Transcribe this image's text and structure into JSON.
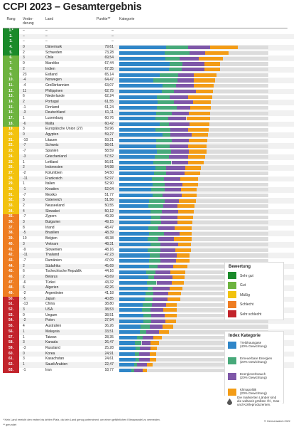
{
  "title": "CCPI 2023 – Gesamtergebnis",
  "header": {
    "rank": "Rang",
    "change": "Verän-\nderung",
    "country": "Land",
    "score": "Punkte**",
    "category": "Kategorie"
  },
  "colors": {
    "rating": {
      "sehr_gut": "#1a8a2a",
      "gut": "#6db33f",
      "maessig": "#f2c20e",
      "schlecht": "#ee7d22",
      "sehr_schlecht": "#c2232b"
    },
    "index": {
      "emissions": "#2f86c8",
      "renewables": "#47a97a",
      "energy": "#7e57a8",
      "policy": "#f39c16"
    }
  },
  "legend_rating": {
    "title": "Bewertung",
    "items": [
      {
        "key": "sehr_gut",
        "label": "Sehr gut"
      },
      {
        "key": "gut",
        "label": "Gut"
      },
      {
        "key": "maessig",
        "label": "Mäßig"
      },
      {
        "key": "schlecht",
        "label": "Schlecht"
      },
      {
        "key": "sehr_schlecht",
        "label": "Sehr schlecht"
      }
    ]
  },
  "legend_index": {
    "title": "Index Kategorie",
    "items": [
      {
        "key": "emissions",
        "label": "Treibhausgase\n(40% Gewichtung)"
      },
      {
        "key": "renewables",
        "label": "Erneuerbare Energien\n(20% Gewichtung)"
      },
      {
        "key": "energy",
        "label": "Energieverbrauch\n(20% Gewichtung)"
      },
      {
        "key": "policy",
        "label": "Klimapolitik\n(20% Gewichtung)"
      }
    ]
  },
  "note": "Die markierten Länder sind die weltweit größten Öl-, Gas- und Kohleproduzenten.",
  "footnote": "* Kein Land erreicht den ersten bis dritten Platz, da kein Land genug unternimmt, um einen gefährlichen Klimawandel zu vermeiden.",
  "footnote2": "** gerundet",
  "credit": "© Germanwatch 2022",
  "chart_data": {
    "type": "bar",
    "stacked": true,
    "title": "CCPI 2023 – Gesamtergebnis",
    "xlim": [
      0,
      100
    ],
    "series_names": [
      "Treibhausgase (40% Gewichtung)",
      "Erneuerbare Energien (20% Gewichtung)",
      "Energieverbrauch (20% Gewichtung)",
      "Klimapolitik (20% Gewichtung)"
    ],
    "rows": [
      {
        "rank": "1.*",
        "change": "",
        "country": "",
        "score": "",
        "rating": "sehr_gut",
        "parts": []
      },
      {
        "rank": "2.",
        "change": "",
        "country": "",
        "score": "",
        "rating": "sehr_gut",
        "parts": []
      },
      {
        "rank": "3.",
        "change": "",
        "country": "",
        "score": "",
        "rating": "sehr_gut",
        "parts": []
      },
      {
        "rank": "4.",
        "change": "0",
        "country": "Dänemark",
        "score": "79,61",
        "rating": "sehr_gut",
        "parts": [
          31.2,
          15.0,
          14.9,
          18.5
        ]
      },
      {
        "rank": "5.",
        "change": "2",
        "country": "Schweden",
        "score": "73,28",
        "rating": "sehr_gut",
        "parts": [
          30.6,
          16.4,
          10.5,
          15.8
        ]
      },
      {
        "rank": "6.",
        "change": "3",
        "country": "Chile",
        "score": "69,54",
        "rating": "gut",
        "parts": [
          31.0,
          9.3,
          13.2,
          16.0
        ]
      },
      {
        "rank": "7.",
        "change": "0",
        "country": "Marokko",
        "score": "67,44",
        "rating": "gut",
        "parts": [
          34.0,
          8.5,
          14.5,
          10.4
        ]
      },
      {
        "rank": "8.",
        "change": "2",
        "country": "Indien",
        "score": "67,35",
        "rating": "gut",
        "parts": [
          33.5,
          8.6,
          14.9,
          10.4
        ]
      },
      {
        "rank": "9.",
        "change": "23",
        "country": "Estland",
        "score": "65,14",
        "rating": "gut",
        "parts": [
          27.1,
          12.3,
          10.8,
          14.9
        ]
      },
      {
        "rank": "10.",
        "change": "-4",
        "country": "Norwegen",
        "score": "64,47",
        "rating": "gut",
        "parts": [
          23.0,
          16.1,
          11.1,
          14.3
        ]
      },
      {
        "rank": "11.",
        "change": "-4",
        "country": "Großbritannien",
        "score": "63,07",
        "rating": "gut",
        "parts": [
          29.2,
          9.0,
          11.9,
          13.0
        ]
      },
      {
        "rank": "12.",
        "change": "11",
        "country": "Philippinen",
        "score": "62,75",
        "rating": "gut",
        "parts": [
          28.5,
          8.0,
          15.0,
          11.2
        ]
      },
      {
        "rank": "13.",
        "change": "6",
        "country": "Niederlande",
        "score": "62,24",
        "rating": "gut",
        "parts": [
          25.1,
          8.5,
          12.8,
          15.8
        ]
      },
      {
        "rank": "14.",
        "change": "2",
        "country": "Portugal",
        "score": "61,55",
        "rating": "gut",
        "parts": [
          25.5,
          11.3,
          12.6,
          12.2
        ]
      },
      {
        "rank": "15.",
        "change": "-1",
        "country": "Finnland",
        "score": "61,24",
        "rating": "gut",
        "parts": [
          25.0,
          13.4,
          9.0,
          13.8
        ]
      },
      {
        "rank": "16.",
        "change": "-3",
        "country": "Deutschland",
        "score": "61,11",
        "rating": "gut",
        "parts": [
          24.7,
          10.4,
          11.6,
          14.4
        ]
      },
      {
        "rank": "17.",
        "change": "1",
        "country": "Luxemburg",
        "score": "60,76",
        "rating": "gut",
        "parts": [
          24.2,
          8.8,
          12.0,
          15.8
        ]
      },
      {
        "rank": "18.",
        "change": "-6",
        "country": "Malta",
        "score": "60,42",
        "rating": "gut",
        "parts": [
          27.0,
          6.5,
          13.8,
          13.1
        ]
      },
      {
        "rank": "19.",
        "change": "3",
        "country": "Europäische Union (27)",
        "score": "59,96",
        "rating": "maessig",
        "parts": [
          24.5,
          9.9,
          12.0,
          13.6
        ]
      },
      {
        "rank": "20.",
        "change": "0",
        "country": "Ägypten",
        "score": "59,27",
        "rating": "maessig",
        "parts": [
          29.0,
          5.3,
          14.2,
          10.8
        ]
      },
      {
        "rank": "21.",
        "change": "-10",
        "country": "Litauen",
        "score": "59,21",
        "rating": "maessig",
        "parts": [
          24.6,
          10.5,
          11.8,
          12.3
        ]
      },
      {
        "rank": "22.",
        "change": "-7",
        "country": "Schweiz",
        "score": "58,61",
        "rating": "maessig",
        "parts": [
          24.8,
          9.0,
          12.4,
          12.4
        ]
      },
      {
        "rank": "23.",
        "change": "-7",
        "country": "Spanien",
        "score": "58,59",
        "rating": "maessig",
        "parts": [
          25.0,
          9.8,
          12.0,
          11.8
        ]
      },
      {
        "rank": "24.",
        "change": "-3",
        "country": "Griechenland",
        "score": "57,52",
        "rating": "maessig",
        "parts": [
          24.0,
          9.5,
          12.5,
          11.5
        ]
      },
      {
        "rank": "25.",
        "change": "1",
        "country": "Lettland",
        "score": "56,81",
        "rating": "maessig",
        "parts": [
          23.0,
          12.0,
          11.0,
          10.8
        ]
      },
      {
        "rank": "26.",
        "change": "2",
        "country": "Indonesien",
        "score": "54,98",
        "rating": "maessig",
        "parts": [
          24.5,
          7.0,
          13.0,
          10.5
        ]
      },
      {
        "rank": "27.",
        "change": "-2",
        "country": "Kolumbien",
        "score": "54,50",
        "rating": "maessig",
        "parts": [
          23.5,
          8.0,
          12.5,
          10.5
        ]
      },
      {
        "rank": "28.",
        "change": "-11",
        "country": "Frankreich",
        "score": "52,97",
        "rating": "maessig",
        "parts": [
          22.0,
          7.8,
          11.2,
          12.0
        ]
      },
      {
        "rank": "29.",
        "change": "1",
        "country": "Italien",
        "score": "52,90",
        "rating": "maessig",
        "parts": [
          22.5,
          8.2,
          11.5,
          10.7
        ]
      },
      {
        "rank": "30.",
        "change": "-1",
        "country": "Kroatien",
        "score": "52,04",
        "rating": "maessig",
        "parts": [
          21.5,
          9.0,
          11.0,
          10.5
        ]
      },
      {
        "rank": "31.",
        "change": "-7",
        "country": "Mexiko",
        "score": "51,77",
        "rating": "maessig",
        "parts": [
          22.5,
          6.5,
          12.8,
          10.0
        ]
      },
      {
        "rank": "32.",
        "change": "5",
        "country": "Österreich",
        "score": "51,56",
        "rating": "maessig",
        "parts": [
          20.0,
          10.5,
          9.5,
          11.6
        ]
      },
      {
        "rank": "33.",
        "change": "2",
        "country": "Neuseeland",
        "score": "50,55",
        "rating": "maessig",
        "parts": [
          19.5,
          10.0,
          9.5,
          11.6
        ]
      },
      {
        "rank": "34.",
        "change": "4",
        "country": "Slowakei",
        "score": "50,12",
        "rating": "maessig",
        "parts": [
          21.0,
          7.5,
          11.0,
          10.6
        ]
      },
      {
        "rank": "35.",
        "change": "-7",
        "country": "Zypern",
        "score": "49,39",
        "rating": "schlecht",
        "parts": [
          21.5,
          6.0,
          11.5,
          10.4
        ]
      },
      {
        "rank": "36.",
        "change": "3",
        "country": "Bulgarien",
        "score": "49,15",
        "rating": "schlecht",
        "parts": [
          21.0,
          7.0,
          11.0,
          10.2
        ]
      },
      {
        "rank": "37.",
        "change": "8",
        "country": "Irland",
        "score": "48,47",
        "rating": "schlecht",
        "parts": [
          19.5,
          6.5,
          11.0,
          11.5
        ]
      },
      {
        "rank": "38.",
        "change": "-5",
        "country": "Brasilien",
        "score": "48,39",
        "rating": "schlecht",
        "parts": [
          20.0,
          10.0,
          10.5,
          7.9
        ]
      },
      {
        "rank": "39.",
        "change": "10",
        "country": "Belgien",
        "score": "48,38",
        "rating": "schlecht",
        "parts": [
          19.0,
          7.0,
          10.5,
          11.9
        ]
      },
      {
        "rank": "40.",
        "change": "3",
        "country": "Vietnam",
        "score": "48,31",
        "rating": "schlecht",
        "parts": [
          21.0,
          6.5,
          12.0,
          8.8
        ]
      },
      {
        "rank": "41.",
        "change": "-9",
        "country": "Slowenien",
        "score": "48,16",
        "rating": "schlecht",
        "parts": [
          19.0,
          8.5,
          10.0,
          10.7
        ]
      },
      {
        "rank": "42.",
        "change": "-11",
        "country": "Thailand",
        "score": "47,23",
        "rating": "schlecht",
        "parts": [
          20.5,
          6.5,
          11.5,
          8.7
        ]
      },
      {
        "rank": "43.",
        "change": "-7",
        "country": "Rumänien",
        "score": "47,09",
        "rating": "schlecht",
        "parts": [
          20.0,
          7.5,
          10.5,
          9.1
        ]
      },
      {
        "rank": "44.",
        "change": "2",
        "country": "Südafrika",
        "score": "45,69",
        "rating": "schlecht",
        "parts": [
          20.0,
          5.5,
          10.5,
          9.7
        ]
      },
      {
        "rank": "45.",
        "change": "6",
        "country": "Tschechische Republik",
        "score": "44,16",
        "rating": "schlecht",
        "parts": [
          18.0,
          6.5,
          10.0,
          9.7
        ]
      },
      {
        "rank": "46.",
        "change": "2",
        "country": "Belarus",
        "score": "43,69",
        "rating": "schlecht",
        "parts": [
          19.5,
          4.0,
          12.0,
          8.2
        ]
      },
      {
        "rank": "47.",
        "change": "-6",
        "country": "Türkei",
        "score": "43,32",
        "rating": "schlecht",
        "parts": [
          18.5,
          6.5,
          10.0,
          8.3
        ]
      },
      {
        "rank": "48.",
        "change": "6",
        "country": "Algerien",
        "score": "42,26",
        "rating": "schlecht",
        "parts": [
          19.0,
          3.5,
          11.5,
          8.3
        ]
      },
      {
        "rank": "49.",
        "change": "-2",
        "country": "Argentinien",
        "score": "41,18",
        "rating": "schlecht",
        "parts": [
          17.5,
          5.5,
          10.0,
          8.2
        ]
      },
      {
        "rank": "50.",
        "change": "-5",
        "country": "Japan",
        "score": "40,85",
        "rating": "sehr_schlecht",
        "parts": [
          17.0,
          5.5,
          10.0,
          8.4
        ]
      },
      {
        "rank": "51.",
        "change": "-13",
        "country": "China",
        "score": "38,80",
        "rating": "sehr_schlecht",
        "parts": [
          15.5,
          6.5,
          9.5,
          7.3
        ]
      },
      {
        "rank": "52.",
        "change": "3",
        "country": "USA",
        "score": "38,53",
        "rating": "sehr_schlecht",
        "parts": [
          15.0,
          6.0,
          8.5,
          9.0
        ]
      },
      {
        "rank": "53.",
        "change": "0",
        "country": "Ungarn",
        "score": "38,51",
        "rating": "sehr_schlecht",
        "parts": [
          16.0,
          5.5,
          9.0,
          8.0
        ]
      },
      {
        "rank": "54.",
        "change": "-2",
        "country": "Polen",
        "score": "37,94",
        "rating": "sehr_schlecht",
        "parts": [
          16.0,
          5.5,
          9.5,
          6.9
        ]
      },
      {
        "rank": "55.",
        "change": "4",
        "country": "Australien",
        "score": "36,26",
        "rating": "sehr_schlecht",
        "parts": [
          14.5,
          6.0,
          8.5,
          7.3
        ]
      },
      {
        "rank": "56.",
        "change": "1",
        "country": "Malaysia",
        "score": "33,51",
        "rating": "sehr_schlecht",
        "parts": [
          14.0,
          4.0,
          8.5,
          7.0
        ]
      },
      {
        "rank": "57.",
        "change": "1",
        "country": "Taiwan",
        "score": "28,35",
        "rating": "sehr_schlecht",
        "parts": [
          12.0,
          3.5,
          7.5,
          5.4
        ]
      },
      {
        "rank": "58.",
        "change": "3",
        "country": "Kanada",
        "score": "26,47",
        "rating": "sehr_schlecht",
        "parts": [
          10.5,
          4.5,
          6.0,
          5.5
        ]
      },
      {
        "rank": "59.",
        "change": "-3",
        "country": "Russland",
        "score": "25,28",
        "rating": "sehr_schlecht",
        "parts": [
          11.0,
          3.0,
          7.0,
          4.3
        ]
      },
      {
        "rank": "60.",
        "change": "0",
        "country": "Korea",
        "score": "24,91",
        "rating": "sehr_schlecht",
        "parts": [
          10.5,
          3.0,
          7.0,
          4.4
        ]
      },
      {
        "rank": "61.",
        "change": "3",
        "country": "Kasachstan",
        "score": "24,61",
        "rating": "sehr_schlecht",
        "parts": [
          11.0,
          2.5,
          7.0,
          4.1
        ]
      },
      {
        "rank": "62.",
        "change": "1",
        "country": "Saudi Arabien",
        "score": "22,47",
        "rating": "sehr_schlecht",
        "parts": [
          10.0,
          2.0,
          6.5,
          4.0
        ]
      },
      {
        "rank": "63.",
        "change": "-1",
        "country": "Iran",
        "score": "18,77",
        "rating": "sehr_schlecht",
        "parts": [
          8.0,
          2.0,
          5.5,
          3.3
        ]
      }
    ]
  }
}
